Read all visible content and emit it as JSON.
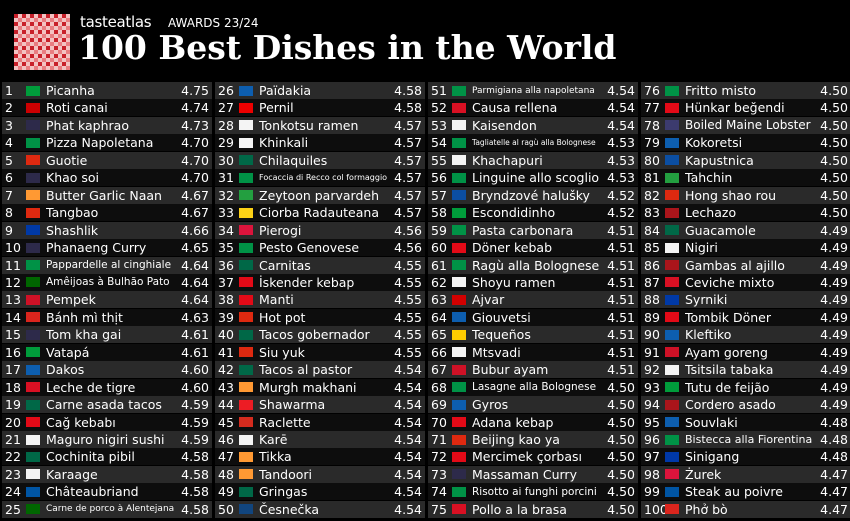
{
  "header": {
    "brand": "tasteatlas",
    "awards": "AWARDS 23/24",
    "title": "100 Best Dishes in the World"
  },
  "dishes": [
    {
      "rank": 1,
      "name": "Picanha",
      "score": "4.75",
      "flag": "#009c3b"
    },
    {
      "rank": 2,
      "name": "Roti canai",
      "score": "4.74",
      "flag": "#cc0001"
    },
    {
      "rank": 3,
      "name": "Phat kaphrao",
      "score": "4.73",
      "flag": "#2d2a4a"
    },
    {
      "rank": 4,
      "name": "Pizza Napoletana",
      "score": "4.70",
      "flag": "#009246"
    },
    {
      "rank": 5,
      "name": "Guotie",
      "score": "4.70",
      "flag": "#de2910"
    },
    {
      "rank": 6,
      "name": "Khao soi",
      "score": "4.70",
      "flag": "#2d2a4a"
    },
    {
      "rank": 7,
      "name": "Butter Garlic Naan",
      "score": "4.67",
      "flag": "#ff9933"
    },
    {
      "rank": 8,
      "name": "Tangbao",
      "score": "4.67",
      "flag": "#de2910"
    },
    {
      "rank": 9,
      "name": "Shashlik",
      "score": "4.66",
      "flag": "#0039a6"
    },
    {
      "rank": 10,
      "name": "Phanaeng Curry",
      "score": "4.65",
      "flag": "#2d2a4a"
    },
    {
      "rank": 11,
      "name": "Pappardelle al cinghiale",
      "score": "4.64",
      "flag": "#009246"
    },
    {
      "rank": 12,
      "name": "Amêijoas à Bulhão Pato",
      "score": "4.64",
      "flag": "#006600"
    },
    {
      "rank": 13,
      "name": "Pempek",
      "score": "4.64",
      "flag": "#ce1126"
    },
    {
      "rank": 14,
      "name": "Bánh mì thịt",
      "score": "4.63",
      "flag": "#da251d"
    },
    {
      "rank": 15,
      "name": "Tom kha gai",
      "score": "4.61",
      "flag": "#2d2a4a"
    },
    {
      "rank": 16,
      "name": "Vatapá",
      "score": "4.61",
      "flag": "#009c3b"
    },
    {
      "rank": 17,
      "name": "Dakos",
      "score": "4.60",
      "flag": "#0d5eaf"
    },
    {
      "rank": 18,
      "name": "Leche de tigre",
      "score": "4.60",
      "flag": "#d91023"
    },
    {
      "rank": 19,
      "name": "Carne asada tacos",
      "score": "4.59",
      "flag": "#006847"
    },
    {
      "rank": 20,
      "name": "Cağ kebabı",
      "score": "4.59",
      "flag": "#e30a17"
    },
    {
      "rank": 21,
      "name": "Maguro nigiri sushi",
      "score": "4.59",
      "flag": "#f4f4f4"
    },
    {
      "rank": 22,
      "name": "Cochinita pibil",
      "score": "4.58",
      "flag": "#006847"
    },
    {
      "rank": 23,
      "name": "Karaage",
      "score": "4.58",
      "flag": "#f4f4f4"
    },
    {
      "rank": 24,
      "name": "Châteaubriand",
      "score": "4.58",
      "flag": "#0055a4"
    },
    {
      "rank": 25,
      "name": "Carne de porco à Alentejana",
      "score": "4.58",
      "flag": "#006600"
    },
    {
      "rank": 26,
      "name": "Païdakia",
      "score": "4.58",
      "flag": "#0d5eaf"
    },
    {
      "rank": 27,
      "name": "Pernil",
      "score": "4.58",
      "flag": "#ed0000"
    },
    {
      "rank": 28,
      "name": "Tonkotsu ramen",
      "score": "4.57",
      "flag": "#f4f4f4"
    },
    {
      "rank": 29,
      "name": "Khinkali",
      "score": "4.57",
      "flag": "#f4f4f4"
    },
    {
      "rank": 30,
      "name": "Chilaquiles",
      "score": "4.57",
      "flag": "#006847"
    },
    {
      "rank": 31,
      "name": "Focaccia di Recco col formaggio",
      "score": "4.57",
      "flag": "#009246"
    },
    {
      "rank": 32,
      "name": "Zeytoon parvardeh",
      "score": "4.57",
      "flag": "#239f40"
    },
    {
      "rank": 33,
      "name": "Ciorba Radauteana",
      "score": "4.57",
      "flag": "#fcd116"
    },
    {
      "rank": 34,
      "name": "Pierogi",
      "score": "4.56",
      "flag": "#dc143c"
    },
    {
      "rank": 35,
      "name": "Pesto Genovese",
      "score": "4.56",
      "flag": "#009246"
    },
    {
      "rank": 36,
      "name": "Carnitas",
      "score": "4.55",
      "flag": "#006847"
    },
    {
      "rank": 37,
      "name": "İskender kebap",
      "score": "4.55",
      "flag": "#e30a17"
    },
    {
      "rank": 38,
      "name": "Manti",
      "score": "4.55",
      "flag": "#e30a17"
    },
    {
      "rank": 39,
      "name": "Hot pot",
      "score": "4.55",
      "flag": "#de2910"
    },
    {
      "rank": 40,
      "name": "Tacos gobernador",
      "score": "4.55",
      "flag": "#006847"
    },
    {
      "rank": 41,
      "name": "Siu yuk",
      "score": "4.55",
      "flag": "#de2910"
    },
    {
      "rank": 42,
      "name": "Tacos al pastor",
      "score": "4.54",
      "flag": "#006847"
    },
    {
      "rank": 43,
      "name": "Murgh makhani",
      "score": "4.54",
      "flag": "#ff9933"
    },
    {
      "rank": 44,
      "name": "Shawarma",
      "score": "4.54",
      "flag": "#ed1c24"
    },
    {
      "rank": 45,
      "name": "Raclette",
      "score": "4.54",
      "flag": "#d52b1e"
    },
    {
      "rank": 46,
      "name": "Karē",
      "score": "4.54",
      "flag": "#f4f4f4"
    },
    {
      "rank": 47,
      "name": "Tikka",
      "score": "4.54",
      "flag": "#ff9933"
    },
    {
      "rank": 48,
      "name": "Tandoori",
      "score": "4.54",
      "flag": "#ff9933"
    },
    {
      "rank": 49,
      "name": "Gringas",
      "score": "4.54",
      "flag": "#006847"
    },
    {
      "rank": 50,
      "name": "Česnečka",
      "score": "4.54",
      "flag": "#11457e"
    },
    {
      "rank": 51,
      "name": "Parmigiana alla napoletana",
      "score": "4.54",
      "flag": "#009246"
    },
    {
      "rank": 52,
      "name": "Causa rellena",
      "score": "4.54",
      "flag": "#d91023"
    },
    {
      "rank": 53,
      "name": "Kaisendon",
      "score": "4.54",
      "flag": "#f4f4f4"
    },
    {
      "rank": 54,
      "name": "Tagliatelle al ragù alla Bolognese",
      "score": "4.53",
      "flag": "#009246"
    },
    {
      "rank": 55,
      "name": "Khachapuri",
      "score": "4.53",
      "flag": "#f4f4f4"
    },
    {
      "rank": 56,
      "name": "Linguine allo scoglio",
      "score": "4.53",
      "flag": "#009246"
    },
    {
      "rank": 57,
      "name": "Bryndzové halušky",
      "score": "4.52",
      "flag": "#0b4ea2"
    },
    {
      "rank": 58,
      "name": "Escondidinho",
      "score": "4.52",
      "flag": "#009c3b"
    },
    {
      "rank": 59,
      "name": "Pasta carbonara",
      "score": "4.51",
      "flag": "#009246"
    },
    {
      "rank": 60,
      "name": "Döner kebab",
      "score": "4.51",
      "flag": "#e30a17"
    },
    {
      "rank": 61,
      "name": "Ragù alla Bolognese",
      "score": "4.51",
      "flag": "#009246"
    },
    {
      "rank": 62,
      "name": "Shoyu ramen",
      "score": "4.51",
      "flag": "#f4f4f4"
    },
    {
      "rank": 63,
      "name": "Ajvar",
      "score": "4.51",
      "flag": "#d20000"
    },
    {
      "rank": 64,
      "name": "Giouvetsi",
      "score": "4.51",
      "flag": "#0d5eaf"
    },
    {
      "rank": 65,
      "name": "Tequeños",
      "score": "4.51",
      "flag": "#ffcc00"
    },
    {
      "rank": 66,
      "name": "Mtsvadi",
      "score": "4.51",
      "flag": "#f4f4f4"
    },
    {
      "rank": 67,
      "name": "Bubur ayam",
      "score": "4.51",
      "flag": "#ce1126"
    },
    {
      "rank": 68,
      "name": "Lasagne alla Bolognese",
      "score": "4.50",
      "flag": "#009246"
    },
    {
      "rank": 69,
      "name": "Gyros",
      "score": "4.50",
      "flag": "#0d5eaf"
    },
    {
      "rank": 70,
      "name": "Adana kebap",
      "score": "4.50",
      "flag": "#e30a17"
    },
    {
      "rank": 71,
      "name": "Beijing kao ya",
      "score": "4.50",
      "flag": "#de2910"
    },
    {
      "rank": 72,
      "name": "Mercimek çorbası",
      "score": "4.50",
      "flag": "#e30a17"
    },
    {
      "rank": 73,
      "name": "Massaman Curry",
      "score": "4.50",
      "flag": "#2d2a4a"
    },
    {
      "rank": 74,
      "name": "Risotto ai funghi porcini",
      "score": "4.50",
      "flag": "#009246"
    },
    {
      "rank": 75,
      "name": "Pollo a la brasa",
      "score": "4.50",
      "flag": "#d91023"
    },
    {
      "rank": 76,
      "name": "Fritto misto",
      "score": "4.50",
      "flag": "#009246"
    },
    {
      "rank": 77,
      "name": "Hünkar beğendi",
      "score": "4.50",
      "flag": "#e30a17"
    },
    {
      "rank": 78,
      "name": "Boiled Maine Lobster",
      "score": "4.50",
      "flag": "#3c3b6e"
    },
    {
      "rank": 79,
      "name": "Kokoretsi",
      "score": "4.50",
      "flag": "#0d5eaf"
    },
    {
      "rank": 80,
      "name": "Kapustnica",
      "score": "4.50",
      "flag": "#0b4ea2"
    },
    {
      "rank": 81,
      "name": "Tahchin",
      "score": "4.50",
      "flag": "#239f40"
    },
    {
      "rank": 82,
      "name": "Hong shao rou",
      "score": "4.50",
      "flag": "#de2910"
    },
    {
      "rank": 83,
      "name": "Lechazo",
      "score": "4.50",
      "flag": "#aa151b"
    },
    {
      "rank": 84,
      "name": "Guacamole",
      "score": "4.49",
      "flag": "#006847"
    },
    {
      "rank": 85,
      "name": "Nigiri",
      "score": "4.49",
      "flag": "#f4f4f4"
    },
    {
      "rank": 86,
      "name": "Gambas al ajillo",
      "score": "4.49",
      "flag": "#aa151b"
    },
    {
      "rank": 87,
      "name": "Ceviche mixto",
      "score": "4.49",
      "flag": "#d91023"
    },
    {
      "rank": 88,
      "name": "Syrniki",
      "score": "4.49",
      "flag": "#0039a6"
    },
    {
      "rank": 89,
      "name": "Tombik Döner",
      "score": "4.49",
      "flag": "#e30a17"
    },
    {
      "rank": 90,
      "name": "Kleftiko",
      "score": "4.49",
      "flag": "#0d5eaf"
    },
    {
      "rank": 91,
      "name": "Ayam goreng",
      "score": "4.49",
      "flag": "#ce1126"
    },
    {
      "rank": 92,
      "name": "Tsitsila tabaka",
      "score": "4.49",
      "flag": "#f4f4f4"
    },
    {
      "rank": 93,
      "name": "Tutu de feijão",
      "score": "4.49",
      "flag": "#009c3b"
    },
    {
      "rank": 94,
      "name": "Cordero asado",
      "score": "4.49",
      "flag": "#aa151b"
    },
    {
      "rank": 95,
      "name": "Souvlaki",
      "score": "4.48",
      "flag": "#0d5eaf"
    },
    {
      "rank": 96,
      "name": "Bistecca alla Fiorentina",
      "score": "4.48",
      "flag": "#009246"
    },
    {
      "rank": 97,
      "name": "Sinigang",
      "score": "4.48",
      "flag": "#0038a8"
    },
    {
      "rank": 98,
      "name": "Żurek",
      "score": "4.47",
      "flag": "#dc143c"
    },
    {
      "rank": 99,
      "name": "Steak au poivre",
      "score": "4.47",
      "flag": "#0055a4"
    },
    {
      "rank": 100,
      "name": "Phở bò",
      "score": "4.47",
      "flag": "#da251d"
    }
  ]
}
